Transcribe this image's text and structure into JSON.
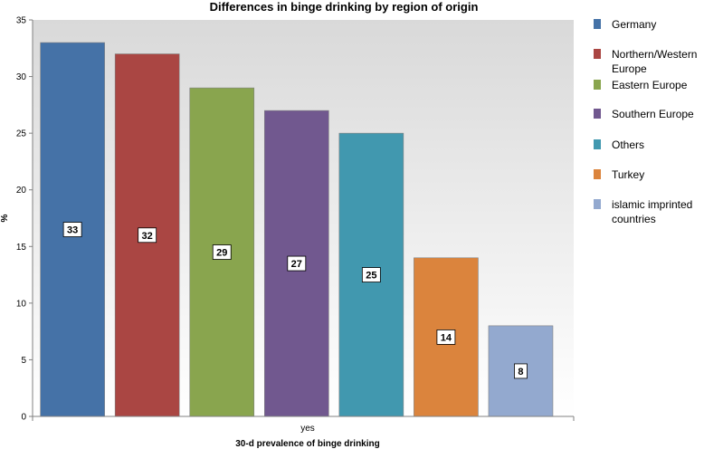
{
  "chart_data": {
    "type": "bar",
    "title": "Differences in binge drinking by region of origin",
    "xlabel": "30-d prevalence of binge drinking",
    "ylabel": "%",
    "categories": [
      "yes"
    ],
    "ylim": [
      0,
      35
    ],
    "yticks": [
      0,
      5,
      10,
      15,
      20,
      25,
      30,
      35
    ],
    "grid": false,
    "legend_position": "right",
    "series": [
      {
        "name": "Germany",
        "values": [
          33
        ],
        "color": "#4572A7"
      },
      {
        "name": "Northern/Western Europe",
        "values": [
          32
        ],
        "color": "#AA4643"
      },
      {
        "name": "Eastern Europe",
        "values": [
          29
        ],
        "color": "#89A54E"
      },
      {
        "name": "Southern Europe",
        "values": [
          27
        ],
        "color": "#71588F"
      },
      {
        "name": "Others",
        "values": [
          25
        ],
        "color": "#4198AF"
      },
      {
        "name": "Turkey",
        "values": [
          14
        ],
        "color": "#DB843D"
      },
      {
        "name": "islamic imprinted countries",
        "values": [
          8
        ],
        "color": "#93A9CF"
      }
    ],
    "legend_lines": [
      [
        "Germany"
      ],
      [
        "Northern/Western",
        "Europe"
      ],
      [
        "Eastern Europe"
      ],
      [
        "Southern Europe"
      ],
      [
        "Others"
      ],
      [
        "Turkey"
      ],
      [
        "islamic imprinted",
        "countries"
      ]
    ]
  }
}
